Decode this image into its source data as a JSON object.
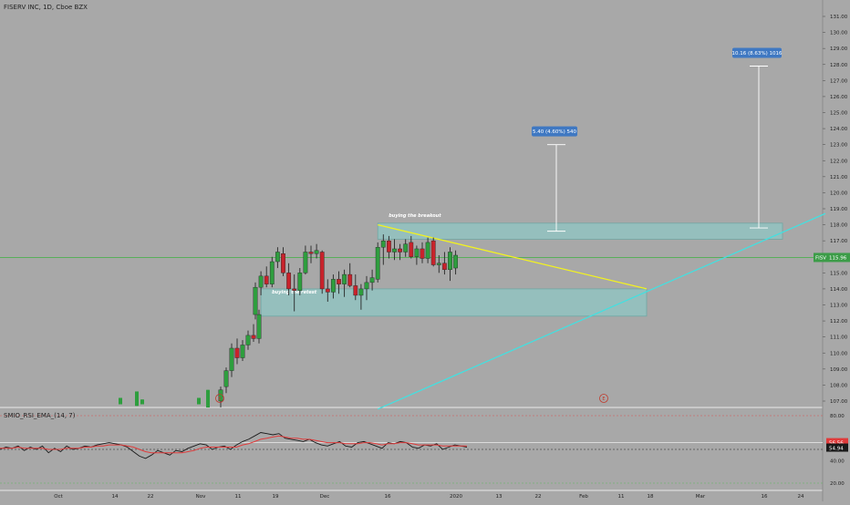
{
  "chart_data": {
    "type": "candlestick",
    "title": "FISERV INC, 1D, Cboe BZX",
    "symbol": "FISV",
    "last_price": "115.96",
    "y_ticks": [
      "131.00",
      "130.00",
      "129.00",
      "128.00",
      "127.00",
      "126.00",
      "125.00",
      "124.00",
      "123.00",
      "122.00",
      "121.00",
      "120.00",
      "119.00",
      "118.00",
      "117.00",
      "116.00",
      "115.00",
      "114.00",
      "113.00",
      "112.00",
      "111.00",
      "110.00",
      "109.00",
      "108.00",
      "107.00"
    ],
    "ylim": [
      106.5,
      131.5
    ],
    "x_ticks": [
      "Oct",
      "14",
      "22",
      "Nov",
      "11",
      "19",
      "Dec",
      "16",
      "2020",
      "13",
      "22",
      "Feb",
      "11",
      "18",
      "Mar",
      "16",
      "24"
    ],
    "candles": [
      {
        "t": "Nov 5",
        "o": 107.0,
        "h": 107.9,
        "l": 106.6,
        "c": 107.7
      },
      {
        "t": "Nov 6",
        "o": 107.9,
        "h": 109.1,
        "l": 107.5,
        "c": 108.9
      },
      {
        "t": "Nov 7",
        "o": 108.9,
        "h": 110.6,
        "l": 108.5,
        "c": 110.3
      },
      {
        "t": "Nov 8",
        "o": 110.3,
        "h": 110.9,
        "l": 109.3,
        "c": 109.7
      },
      {
        "t": "Nov 11",
        "o": 109.7,
        "h": 110.8,
        "l": 109.5,
        "c": 110.5
      },
      {
        "t": "Nov 12",
        "o": 110.5,
        "h": 111.4,
        "l": 110.2,
        "c": 111.1
      },
      {
        "t": "Nov 13",
        "o": 111.1,
        "h": 111.8,
        "l": 110.7,
        "c": 110.9
      },
      {
        "t": "Nov 14",
        "o": 110.9,
        "h": 112.7,
        "l": 110.6,
        "c": 112.4
      },
      {
        "t": "Nov 15",
        "o": 112.4,
        "h": 114.4,
        "l": 112.1,
        "c": 114.1
      },
      {
        "t": "Nov 18",
        "o": 114.1,
        "h": 115.1,
        "l": 113.6,
        "c": 114.8
      },
      {
        "t": "Nov 19",
        "o": 114.8,
        "h": 115.4,
        "l": 114.1,
        "c": 114.3
      },
      {
        "t": "Nov 20",
        "o": 114.3,
        "h": 116.0,
        "l": 114.1,
        "c": 115.7
      },
      {
        "t": "Nov 21",
        "o": 115.7,
        "h": 116.6,
        "l": 115.3,
        "c": 116.3
      },
      {
        "t": "Nov 22",
        "o": 116.2,
        "h": 116.6,
        "l": 114.8,
        "c": 115.0
      },
      {
        "t": "Nov 25",
        "o": 115.0,
        "h": 115.6,
        "l": 113.6,
        "c": 114.0
      },
      {
        "t": "Nov 26",
        "o": 114.0,
        "h": 114.9,
        "l": 112.6,
        "c": 113.9
      },
      {
        "t": "Nov 27",
        "o": 113.9,
        "h": 115.3,
        "l": 113.6,
        "c": 115.0
      },
      {
        "t": "Nov 29",
        "o": 115.0,
        "h": 116.7,
        "l": 114.9,
        "c": 116.3
      },
      {
        "t": "Dec 2",
        "o": 116.3,
        "h": 116.7,
        "l": 115.6,
        "c": 116.2
      },
      {
        "t": "Dec 3",
        "o": 116.2,
        "h": 116.8,
        "l": 115.9,
        "c": 116.4
      },
      {
        "t": "Dec 4",
        "o": 116.3,
        "h": 116.4,
        "l": 113.7,
        "c": 114.0
      },
      {
        "t": "Dec 5",
        "o": 114.0,
        "h": 114.6,
        "l": 113.2,
        "c": 113.8
      },
      {
        "t": "Dec 6",
        "o": 113.8,
        "h": 114.9,
        "l": 113.4,
        "c": 114.6
      },
      {
        "t": "Dec 9",
        "o": 114.6,
        "h": 115.1,
        "l": 113.7,
        "c": 114.3
      },
      {
        "t": "Dec 10",
        "o": 114.3,
        "h": 115.2,
        "l": 113.5,
        "c": 114.9
      },
      {
        "t": "Dec 11",
        "o": 114.9,
        "h": 115.6,
        "l": 114.1,
        "c": 114.2
      },
      {
        "t": "Dec 12",
        "o": 114.2,
        "h": 114.9,
        "l": 113.3,
        "c": 113.6
      },
      {
        "t": "Dec 13",
        "o": 113.6,
        "h": 114.3,
        "l": 112.7,
        "c": 114.0
      },
      {
        "t": "Dec 16",
        "o": 114.0,
        "h": 114.8,
        "l": 113.3,
        "c": 114.4
      },
      {
        "t": "Dec 17",
        "o": 114.4,
        "h": 115.2,
        "l": 113.9,
        "c": 114.7
      },
      {
        "t": "Dec 18",
        "o": 114.6,
        "h": 116.9,
        "l": 114.4,
        "c": 116.6
      },
      {
        "t": "Dec 19",
        "o": 116.6,
        "h": 117.4,
        "l": 115.5,
        "c": 117.0
      },
      {
        "t": "Dec 20",
        "o": 117.0,
        "h": 117.3,
        "l": 115.9,
        "c": 116.3
      },
      {
        "t": "Dec 23",
        "o": 116.3,
        "h": 117.1,
        "l": 115.8,
        "c": 116.5
      },
      {
        "t": "Dec 24",
        "o": 116.5,
        "h": 116.8,
        "l": 115.8,
        "c": 116.3
      },
      {
        "t": "Dec 26",
        "o": 116.3,
        "h": 117.1,
        "l": 116.0,
        "c": 116.8
      },
      {
        "t": "Dec 27",
        "o": 116.9,
        "h": 117.3,
        "l": 115.9,
        "c": 116.0
      },
      {
        "t": "Dec 30",
        "o": 116.0,
        "h": 116.7,
        "l": 115.5,
        "c": 116.5
      },
      {
        "t": "Dec 31",
        "o": 116.5,
        "h": 116.9,
        "l": 115.6,
        "c": 115.9
      },
      {
        "t": "Jan 2",
        "o": 115.9,
        "h": 117.2,
        "l": 115.6,
        "c": 116.9
      },
      {
        "t": "Jan 3",
        "o": 117.0,
        "h": 117.2,
        "l": 115.4,
        "c": 115.5
      },
      {
        "t": "Jan 6",
        "o": 115.5,
        "h": 116.1,
        "l": 115.0,
        "c": 115.6
      },
      {
        "t": "Jan 7",
        "o": 115.6,
        "h": 116.3,
        "l": 114.9,
        "c": 115.2
      },
      {
        "t": "Jan 8",
        "o": 115.2,
        "h": 116.6,
        "l": 114.5,
        "c": 116.3
      },
      {
        "t": "Jan 9",
        "o": 115.3,
        "h": 116.4,
        "l": 114.9,
        "c": 116.1
      }
    ],
    "zones": [
      {
        "label": "buying the breakout",
        "from": "Dec 18",
        "to": "Mar 18",
        "y1": 117.1,
        "y2": 118.1
      },
      {
        "label": "buying the retest",
        "from": "Nov 18",
        "to": "Feb 18",
        "y1": 112.3,
        "y2": 114.0
      }
    ],
    "trendlines": [
      {
        "from": {
          "t": "Dec 18",
          "y": 118.0
        },
        "to": {
          "t": "Feb 18",
          "y": 114.0
        },
        "color": "#f2f220"
      },
      {
        "from": {
          "t": "Dec 18",
          "y": 106.5
        },
        "to": {
          "t": "Mar 31",
          "y": 118.7
        },
        "color": "#43e0e0"
      }
    ],
    "measures": [
      {
        "label": "5.40 (4.60%) 540",
        "from": 117.6,
        "to": 123.0
      },
      {
        "label": "10.16 (8.63%) 1016",
        "from": 117.8,
        "to": 127.9
      }
    ],
    "markers": [
      "E",
      "E"
    ],
    "indicator": {
      "name": "SMIO_RSI_EMA_(14, 7)",
      "y_ticks": [
        "80.00",
        "40.00",
        "20.00"
      ],
      "ylim": [
        10,
        90
      ],
      "ref_levels": [
        80,
        20
      ],
      "value_1": "56.56",
      "value_2": "54.94",
      "value_1_color": "#e03b3b",
      "value_2_color": "#1a1a1a",
      "rsi": [
        50,
        52,
        51,
        53,
        49,
        52,
        50,
        53,
        47,
        51,
        48,
        53,
        50,
        51,
        53,
        52,
        54,
        55,
        56,
        55,
        54,
        52,
        48,
        44,
        42,
        45,
        49,
        47,
        45,
        49,
        48,
        51,
        53,
        55,
        54,
        50,
        52,
        53,
        50,
        54,
        57,
        59,
        62,
        65,
        64,
        63,
        64,
        60,
        59,
        58,
        57,
        59,
        56,
        54,
        53,
        55,
        57,
        53,
        52,
        56,
        57,
        55,
        53,
        51,
        56,
        55,
        57,
        56,
        52,
        51,
        54,
        53,
        55,
        50,
        52,
        54,
        53,
        52
      ],
      "ema": [
        51,
        51,
        51,
        52,
        51,
        51,
        51,
        51,
        50,
        50,
        50,
        51,
        51,
        51,
        52,
        52,
        53,
        53,
        54,
        54,
        54,
        53,
        52,
        50,
        48,
        47,
        47,
        47,
        47,
        47,
        47,
        48,
        49,
        51,
        52,
        52,
        52,
        52,
        52,
        52,
        54,
        55,
        57,
        59,
        60,
        61,
        62,
        61,
        60,
        60,
        59,
        59,
        58,
        57,
        56,
        56,
        56,
        55,
        55,
        55,
        56,
        56,
        55,
        54,
        55,
        55,
        56,
        56,
        55,
        54,
        54,
        54,
        54,
        53,
        53,
        53,
        53,
        53
      ]
    },
    "grid": false,
    "legend": "top-left",
    "colors": {
      "up": "#2e9e3e",
      "down": "#c8232c",
      "zone_fill": "#8fc7c4",
      "zone_border": "#6fa7a4",
      "price_line": "#4caf50",
      "measure_label": "#3f78c2"
    }
  }
}
